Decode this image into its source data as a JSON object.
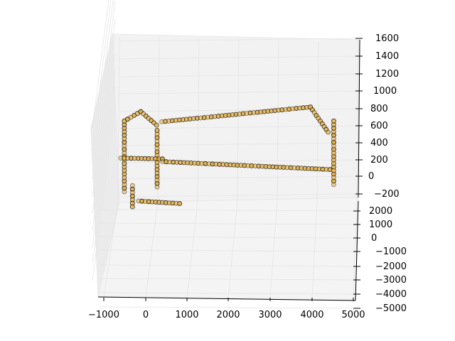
{
  "chart_data": {
    "type": "scatter",
    "projection": "3d",
    "title": "",
    "xlabel": "",
    "ylabel": "",
    "zlabel": "",
    "grid": true,
    "axes": {
      "x": {
        "ticks": [
          "−1000",
          "0",
          "1000",
          "2000",
          "3000",
          "4000",
          "5000"
        ]
      },
      "y": {
        "ticks": [
          "−5000",
          "−4000",
          "−3000",
          "−2000",
          "−1000",
          "0",
          "1000",
          "2000"
        ]
      },
      "z": {
        "ticks": [
          "−200",
          "0",
          "200",
          "400",
          "600",
          "800",
          "1000",
          "1200",
          "1400",
          "1600"
        ]
      }
    },
    "series": [
      {
        "marker": "circle",
        "color": "#e6b450",
        "edge_color": "#000000",
        "paths": [
          {
            "id": "front-left-column",
            "points": [
              [
                -500,
                200,
                0
              ],
              [
                -500,
                200,
                1000
              ]
            ]
          },
          {
            "id": "top-left-rail",
            "points": [
              [
                -500,
                200,
                1000
              ],
              [
                -100,
                300,
                1150
              ],
              [
                300,
                600,
                1000
              ]
            ]
          },
          {
            "id": "left-hanging-segment",
            "points": [
              [
                -300,
                300,
                100
              ],
              [
                -300,
                300,
                -200
              ]
            ]
          },
          {
            "id": "second-left-column",
            "points": [
              [
                300,
                400,
                100
              ],
              [
                300,
                400,
                900
              ]
            ]
          },
          {
            "id": "left-crossbar",
            "points": [
              [
                -600,
                0,
                450
              ],
              [
                400,
                0,
                450
              ]
            ]
          },
          {
            "id": "bottom-rail",
            "points": [
              [
                400,
                -100,
                400
              ],
              [
                4400,
                -400,
                300
              ]
            ]
          },
          {
            "id": "right-column",
            "points": [
              [
                4500,
                -300,
                100
              ],
              [
                4500,
                -300,
                1000
              ]
            ]
          },
          {
            "id": "top-rail",
            "points": [
              [
                400,
                200,
                1000
              ],
              [
                4000,
                600,
                1300
              ]
            ]
          },
          {
            "id": "right-upper-branch",
            "points": [
              [
                4000,
                600,
                1300
              ],
              [
                4400,
                200,
                900
              ]
            ]
          },
          {
            "id": "ground-cluster",
            "points": [
              [
                -200,
                -400,
                -200
              ],
              [
                800,
                -200,
                -200
              ]
            ]
          }
        ]
      }
    ]
  }
}
